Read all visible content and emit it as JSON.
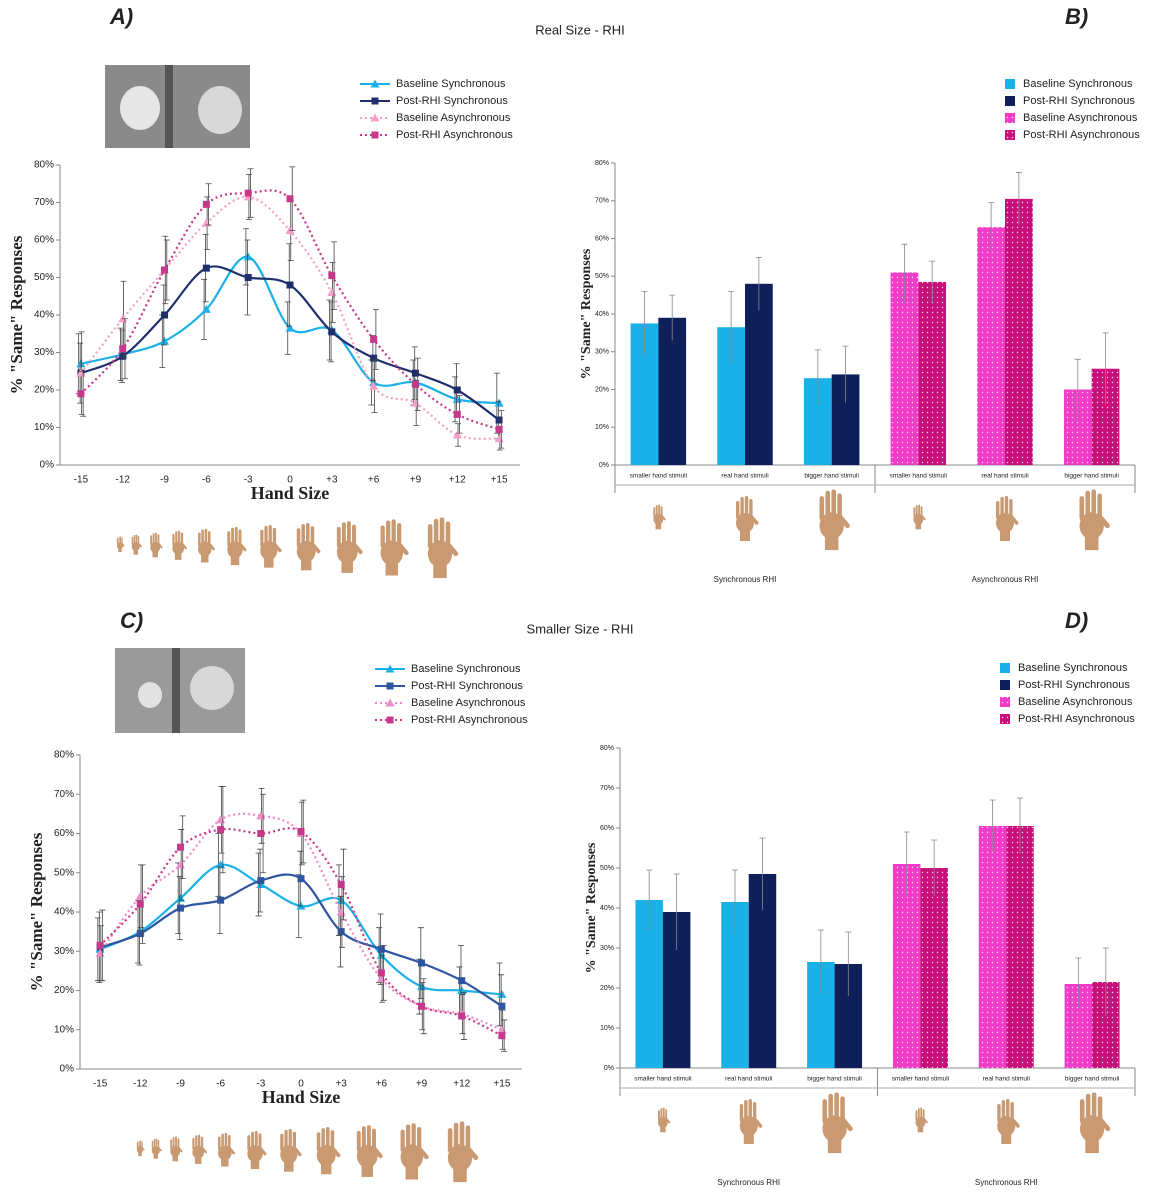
{
  "section_titles": [
    "Real Size - RHI",
    "Smaller Size - RHI"
  ],
  "chart_data": [
    {
      "type": "line",
      "panel_label": "A)",
      "y_label": "% \"Same\" Responses",
      "x_label": "Hand Size",
      "categories": [
        "-15",
        "-12",
        "-9",
        "-6",
        "-3",
        "0",
        "+3",
        "+6",
        "+9",
        "+12",
        "+15"
      ],
      "ylim": [
        0,
        80
      ],
      "yticks": [
        {
          "value": 0,
          "label": "0%"
        },
        {
          "value": 10,
          "label": "10%"
        },
        {
          "value": 20,
          "label": "20%"
        },
        {
          "value": 30,
          "label": "30%"
        },
        {
          "value": 40,
          "label": "40%"
        },
        {
          "value": 50,
          "label": "50%"
        },
        {
          "value": 60,
          "label": "60%"
        },
        {
          "value": 70,
          "label": "70%"
        },
        {
          "value": 80,
          "label": "80%"
        }
      ],
      "series": [
        {
          "name": "Baseline Synchronous",
          "color": "#1ab0e8",
          "marker": "triangle",
          "dashed": false,
          "values": [
            27,
            29.5,
            33,
            41.5,
            55.5,
            36.5,
            36,
            22,
            22,
            17.5,
            16.5
          ],
          "errors": [
            8,
            7,
            7,
            8,
            7.5,
            7,
            8,
            6,
            6,
            6,
            8
          ]
        },
        {
          "name": "Post-RHI Synchronous",
          "color": "#1f2f6e",
          "marker": "square",
          "dashed": false,
          "values": [
            24.5,
            29,
            40,
            52.5,
            50,
            48,
            35.5,
            28.5,
            24.5,
            20,
            12
          ],
          "errors": [
            8,
            7,
            8,
            9,
            10,
            11,
            8,
            6,
            7,
            7,
            5
          ]
        },
        {
          "name": "Baseline Asynchronous",
          "color": "#f4a0c8",
          "marker": "triangle",
          "dashed": true,
          "values": [
            24.5,
            39,
            52,
            64.5,
            71.5,
            62.5,
            46,
            21,
            16.5,
            8,
            7
          ],
          "errors": [
            11,
            10,
            9,
            7,
            6,
            8,
            8,
            7,
            6,
            3,
            3
          ]
        },
        {
          "name": "Post-RHI Asynchronous",
          "color": "#c8388a",
          "marker": "square",
          "dashed": true,
          "values": [
            19,
            31,
            52,
            69.5,
            72.5,
            71,
            50.5,
            33.5,
            21.5,
            13.5,
            9.5
          ],
          "errors": [
            6,
            8,
            8,
            5.5,
            6.5,
            8.5,
            9,
            8,
            7,
            5,
            5
          ]
        }
      ]
    },
    {
      "type": "bar",
      "panel_label": "B)",
      "y_label": "% \"Same\" Responses",
      "categories": [
        "smaller hand stimuli",
        "real hand stimuli",
        "bigger hand stimuli",
        "smaller hand stimuli",
        "real hand stimuli",
        "bigger hand stimuli"
      ],
      "group_labels": [
        "Synchronous RHI",
        "Asynchronous RHI"
      ],
      "ylim": [
        0,
        80
      ],
      "yticks": [
        {
          "value": 0,
          "label": "0%"
        },
        {
          "value": 10,
          "label": "10%"
        },
        {
          "value": 20,
          "label": "20%"
        },
        {
          "value": 30,
          "label": "30%"
        },
        {
          "value": 40,
          "label": "40%"
        },
        {
          "value": 50,
          "label": "50%"
        },
        {
          "value": 60,
          "label": "60%"
        },
        {
          "value": 70,
          "label": "70%"
        },
        {
          "value": 80,
          "label": "80%"
        }
      ],
      "series": [
        {
          "name": "Baseline Synchronous",
          "color": "#1ab0e8",
          "pattern": false,
          "values": [
            37.5,
            36.5,
            23,
            null,
            null,
            null
          ],
          "errors": [
            8.5,
            9.5,
            7.5,
            null,
            null,
            null
          ]
        },
        {
          "name": "Post-RHI Synchronous",
          "color": "#0f1f5a",
          "pattern": false,
          "values": [
            39,
            48,
            24,
            null,
            null,
            null
          ],
          "errors": [
            6,
            7,
            7.5,
            null,
            null,
            null
          ]
        },
        {
          "name": "Baseline Asynchronous",
          "color": "#f03cc8",
          "pattern": true,
          "values": [
            null,
            null,
            null,
            51,
            63,
            20
          ],
          "errors": [
            null,
            null,
            null,
            7.5,
            6.5,
            8
          ]
        },
        {
          "name": "Post-RHI Asynchronous",
          "color": "#c8107a",
          "pattern": true,
          "values": [
            null,
            null,
            null,
            48.5,
            70.5,
            25.5
          ],
          "errors": [
            null,
            null,
            null,
            5.5,
            7,
            9.5
          ]
        }
      ]
    },
    {
      "type": "line",
      "panel_label": "C)",
      "y_label": "% \"Same\" Responses",
      "x_label": "Hand Size",
      "categories": [
        "-15",
        "-12",
        "-9",
        "-6",
        "-3",
        "0",
        "+3",
        "+6",
        "+9",
        "+12",
        "+15"
      ],
      "ylim": [
        0,
        80
      ],
      "yticks": [
        {
          "value": 0,
          "label": "0%"
        },
        {
          "value": 10,
          "label": "10%"
        },
        {
          "value": 20,
          "label": "20%"
        },
        {
          "value": 30,
          "label": "30%"
        },
        {
          "value": 40,
          "label": "40%"
        },
        {
          "value": 50,
          "label": "50%"
        },
        {
          "value": 60,
          "label": "60%"
        },
        {
          "value": 70,
          "label": "70%"
        },
        {
          "value": 80,
          "label": "80%"
        }
      ],
      "series": [
        {
          "name": "Baseline Synchronous",
          "color": "#1ab0e8",
          "marker": "triangle",
          "dashed": false,
          "values": [
            30.5,
            35,
            43.5,
            52,
            47,
            41.5,
            43,
            29,
            21,
            20,
            19
          ],
          "errors": [
            8,
            8,
            9,
            8,
            8,
            8,
            9,
            7,
            7,
            6,
            8
          ]
        },
        {
          "name": "Post-RHI Synchronous",
          "color": "#2f55a0",
          "marker": "square",
          "dashed": false,
          "values": [
            31,
            34.5,
            41,
            43,
            48,
            48.5,
            35,
            30.5,
            27,
            22.5,
            16
          ],
          "errors": [
            9,
            8,
            8,
            8.5,
            8,
            7,
            9,
            9,
            9,
            9,
            8
          ]
        },
        {
          "name": "Baseline Asynchronous",
          "color": "#f08cc8",
          "marker": "triangle",
          "dashed": true,
          "values": [
            29.5,
            44,
            52,
            63.5,
            64.5,
            60,
            40,
            23,
            16,
            14,
            10
          ],
          "errors": [
            7,
            8,
            9,
            8.5,
            7,
            8,
            9,
            6,
            6,
            5,
            5
          ]
        },
        {
          "name": "Post-RHI Asynchronous",
          "color": "#c8388a",
          "marker": "square",
          "dashed": true,
          "values": [
            31.5,
            42,
            56.5,
            61,
            60,
            60.5,
            47,
            24.5,
            16,
            13.5,
            8.5
          ],
          "errors": [
            9,
            10,
            8,
            11,
            10,
            8,
            9,
            7,
            7,
            6,
            4
          ]
        }
      ]
    },
    {
      "type": "bar",
      "panel_label": "D)",
      "y_label": "% \"Same\" Responses",
      "categories": [
        "smaller hand stimuli",
        "real hand stimuli",
        "bigger hand stimuli",
        "smaller hand stimuli",
        "real hand stimuli",
        "bigger hand stimuli"
      ],
      "group_labels": [
        "Synchronous RHI",
        "Synchronous RHI"
      ],
      "ylim": [
        0,
        80
      ],
      "yticks": [
        {
          "value": 0,
          "label": "0%"
        },
        {
          "value": 10,
          "label": "10%"
        },
        {
          "value": 20,
          "label": "20%"
        },
        {
          "value": 30,
          "label": "30%"
        },
        {
          "value": 40,
          "label": "40%"
        },
        {
          "value": 50,
          "label": "50%"
        },
        {
          "value": 60,
          "label": "60%"
        },
        {
          "value": 70,
          "label": "70%"
        },
        {
          "value": 80,
          "label": "80%"
        }
      ],
      "series": [
        {
          "name": "Baseline Synchronous",
          "color": "#1ab0e8",
          "pattern": false,
          "values": [
            42,
            41.5,
            26.5,
            null,
            null,
            null
          ],
          "errors": [
            7.5,
            8,
            8,
            null,
            null,
            null
          ]
        },
        {
          "name": "Post-RHI Synchronous",
          "color": "#0f1f5a",
          "pattern": false,
          "values": [
            39,
            48.5,
            26,
            null,
            null,
            null
          ],
          "errors": [
            9.5,
            9,
            8,
            null,
            null,
            null
          ]
        },
        {
          "name": "Baseline Asynchronous",
          "color": "#f03cc8",
          "pattern": true,
          "values": [
            null,
            null,
            null,
            51,
            60.5,
            21
          ],
          "errors": [
            null,
            null,
            null,
            8,
            6.5,
            6.5
          ]
        },
        {
          "name": "Post-RHI Asynchronous",
          "color": "#c8107a",
          "pattern": true,
          "values": [
            null,
            null,
            null,
            50,
            60.5,
            21.5
          ],
          "errors": [
            null,
            null,
            null,
            7,
            7,
            8.5
          ]
        }
      ]
    }
  ]
}
